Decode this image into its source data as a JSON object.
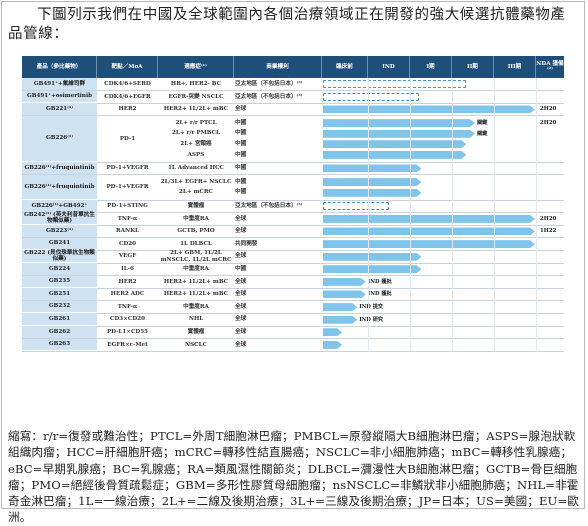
{
  "intro_text": "下圖列示我們在中國及全球範圍內各個治療領域正在開發的強大候選抗體藥物產品管線：",
  "header": {
    "col_asset": "產品（參比藥物）",
    "col_target": "靶點／MoA",
    "col_indication": "適應症⁽¹⁾",
    "col_rights": "商業權利",
    "col_preclinical": "臨床前",
    "col_ind": "IND",
    "col_phase1": "I期",
    "col_phase2": "II期",
    "col_phase3": "III期",
    "col_nda": "NDA 獲備⁽²⁾"
  },
  "groups": [
    {
      "asset": "GB491⁺+氟維司群",
      "rows": [
        {
          "target": "CDK4/6+SERD",
          "indication": "HR+, HER2- BC",
          "rights": "亞太地區（不包括日本）⁽³⁾",
          "progress": 0.67,
          "dashed": true
        }
      ]
    },
    {
      "asset": "GB491⁺+osimertinib",
      "rows": [
        {
          "target": "CDK4/6+EGFR",
          "indication": "EGFR-突變 NSCLC",
          "rights": "亞太地區（不包括日本）⁽³⁾",
          "progress": 0.45,
          "dashed": true
        }
      ]
    },
    {
      "asset": "GB221⁽¹⁾",
      "rows": [
        {
          "target": "HER2",
          "indication": "HER2+ 1L/2L+ mBC",
          "rights": "全球",
          "progress": 0.99,
          "nda": "2H20"
        }
      ]
    },
    {
      "asset": "GB226⁽¹⁾",
      "target": "PD-1",
      "rows": [
        {
          "indication": "2L+ r/r PTCL",
          "rights": "中國",
          "progress": 0.71,
          "note": "關鍵",
          "nda": "2H20"
        },
        {
          "indication": "2L+ r/r PMBCL",
          "rights": "中國",
          "progress": 0.71,
          "note": "關鍵"
        },
        {
          "indication": "2L+ 宮頸癌",
          "rights": "中國",
          "progress": 0.67
        },
        {
          "indication": "ASPS",
          "rights": "中國",
          "progress": 0.67
        }
      ]
    },
    {
      "asset": "GB226⁽¹⁾+fruquintinib",
      "rows": [
        {
          "target": "PD-1+VEGFR",
          "indication": "1L Advanced HCC",
          "rights": "中國",
          "progress": 0.46
        }
      ]
    },
    {
      "asset": "GB226⁽¹⁾+fruquintinib",
      "target": "PD-1+VEGFR",
      "rows": [
        {
          "indication": "2L/3L+ EGFR+ NSCLC",
          "rights": "中國",
          "progress": 0.46
        },
        {
          "indication": "2L+ mCRC",
          "rights": "中國",
          "progress": 0.46
        }
      ]
    },
    {
      "asset": "GB226⁽¹⁾+GB492⁺",
      "rows": [
        {
          "target": "PD-1+STING",
          "indication": "實體瘤",
          "rights": "亞太地區（不包括日本）⁽³⁾",
          "progress": 0.31,
          "dashed": true
        }
      ]
    },
    {
      "asset": "GB242⁽¹⁾ (英夫利昔單抗生物類似藥)",
      "rows": [
        {
          "target": "TNF-α",
          "indication": "中重度RA",
          "rights": "全球",
          "progress": 0.99,
          "nda": "2H20"
        }
      ]
    },
    {
      "asset": "GB223⁽¹⁾",
      "rows": [
        {
          "target": "RANKL",
          "indication": "GCTB, PMO",
          "rights": "全球",
          "progress": 0.99,
          "nda": "1H22"
        }
      ]
    },
    {
      "asset": "GB241",
      "rows": [
        {
          "target": "CD20",
          "indication": "1L DLBCL",
          "rights": "共同開發",
          "progress": 0.99
        }
      ]
    },
    {
      "asset": "GB222 (貝伐珠單抗生物類似藥)",
      "rows": [
        {
          "target": "VEGF",
          "indication": "2L+ GBM, 1L/2L mNSCLC, 1L/2L mCRC",
          "rights": "全球",
          "progress": 0.46
        }
      ]
    },
    {
      "asset": "GB224",
      "rows": [
        {
          "target": "IL-6",
          "indication": "中重度RA",
          "rights": "中國",
          "progress": 0.46
        }
      ]
    },
    {
      "asset": "GB235",
      "rows": [
        {
          "target": "HER2",
          "indication": "HER2+ 1L/2L+ mBC",
          "rights": "全球",
          "progress": 0.2,
          "note": "IND 獲批"
        }
      ]
    },
    {
      "asset": "GB251",
      "rows": [
        {
          "target": "HER2 ADC",
          "indication": "HER2+ 1L/2L+ mBC",
          "rights": "全球",
          "progress": 0.2,
          "note": "IND 獲批"
        }
      ]
    },
    {
      "asset": "GB232",
      "rows": [
        {
          "target": "TNF-α",
          "indication": "中重度RA",
          "rights": "全球",
          "progress": 0.16,
          "note": "IND 提交"
        }
      ]
    },
    {
      "asset": "GB261",
      "rows": [
        {
          "target": "CD3×CD20",
          "indication": "NHL",
          "rights": "全球",
          "progress": 0.16,
          "note": "IND 研究"
        }
      ]
    },
    {
      "asset": "GB262",
      "rows": [
        {
          "target": "PD-L1×CD55",
          "indication": "實體瘤",
          "rights": "全球",
          "progress": 0.09
        }
      ]
    },
    {
      "asset": "GB263",
      "rows": [
        {
          "target": "EGFR×c-Met",
          "indication": "NSCLC",
          "rights": "全球",
          "progress": 0.09
        }
      ]
    }
  ],
  "footnote": "縮寫：r/r=復發或難治性；PTCL=外周T細胞淋巴瘤；PMBCL=原發縱隔大B細胞淋巴瘤；ASPS=腺泡狀軟組織肉瘤；HCC=肝細胞肝癌；mCRC=轉移性結直腸癌；NSCLC=非小細胞肺癌；mBC=轉移性乳腺癌；eBC=早期乳腺癌；BC=乳腺癌；RA=類風濕性關節炎；DLBCL=瀰漫性大B細胞淋巴瘤；GCTB=骨巨細胞瘤；PMO=絕經後骨質疏鬆症；GBM=多形性膠質母細胞瘤；nsNSCLC=非鱗狀非小細胞肺癌；NHL=非霍奇金淋巴瘤；1L=一線治療；2L+=二線及後期治療；3L+=三線及後期治療；JP=日本；US=美國；EU=歐洲。",
  "colors": {
    "header_bg": "#1f4e79",
    "asset_bg": "#cfe2f1",
    "bar": "#7fc4ea",
    "bar_dash": "#4a8fc4"
  }
}
